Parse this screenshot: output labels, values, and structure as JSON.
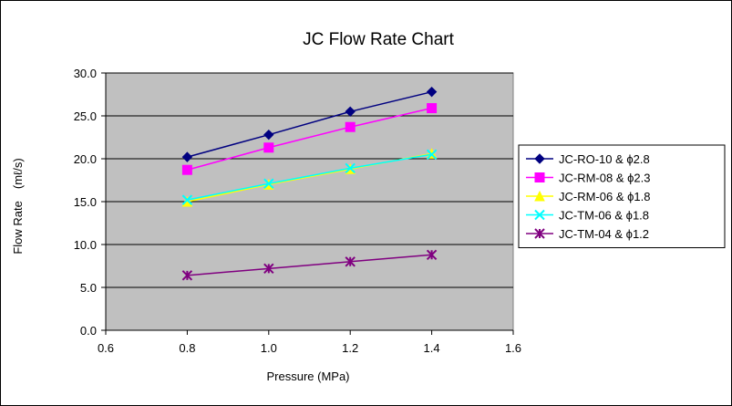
{
  "chart_data": {
    "type": "line",
    "title": "JC Flow Rate Chart",
    "xlabel": "Pressure (MPa)",
    "ylabel": "Flow Rate　(mℓ/s)",
    "xlim": [
      0.6,
      1.6
    ],
    "ylim": [
      0.0,
      30.0
    ],
    "x_ticks": [
      "0.6",
      "0.8",
      "1.0",
      "1.2",
      "1.4",
      "1.6"
    ],
    "y_ticks": [
      "0.0",
      "5.0",
      "10.0",
      "15.0",
      "20.0",
      "25.0",
      "30.0"
    ],
    "grid": "horizontal",
    "legend_position": "right",
    "plot_background": "#c0c0c0",
    "series": [
      {
        "name": "JC-RO-10 & ϕ2.8",
        "color": "#000080",
        "marker": "diamond",
        "x": [
          0.8,
          1.0,
          1.2,
          1.4
        ],
        "y": [
          20.2,
          22.8,
          25.5,
          27.8
        ]
      },
      {
        "name": "JC-RM-08 & ϕ2.3",
        "color": "#ff00ff",
        "marker": "square",
        "x": [
          0.8,
          1.0,
          1.2,
          1.4
        ],
        "y": [
          18.7,
          21.3,
          23.7,
          25.9
        ]
      },
      {
        "name": "JC-RM-06 & ϕ1.8",
        "color": "#ffff00",
        "marker": "triangle",
        "x": [
          0.8,
          1.0,
          1.2,
          1.4
        ],
        "y": [
          15.0,
          17.0,
          18.8,
          20.6
        ]
      },
      {
        "name": "JC-TM-06 & ϕ1.8",
        "color": "#00ffff",
        "marker": "x",
        "x": [
          0.8,
          1.0,
          1.2,
          1.4
        ],
        "y": [
          15.2,
          17.1,
          18.9,
          20.5
        ]
      },
      {
        "name": "JC-TM-04 & ϕ1.2",
        "color": "#800080",
        "marker": "asterisk",
        "x": [
          0.8,
          1.0,
          1.2,
          1.4
        ],
        "y": [
          6.4,
          7.2,
          8.0,
          8.8
        ]
      }
    ]
  }
}
